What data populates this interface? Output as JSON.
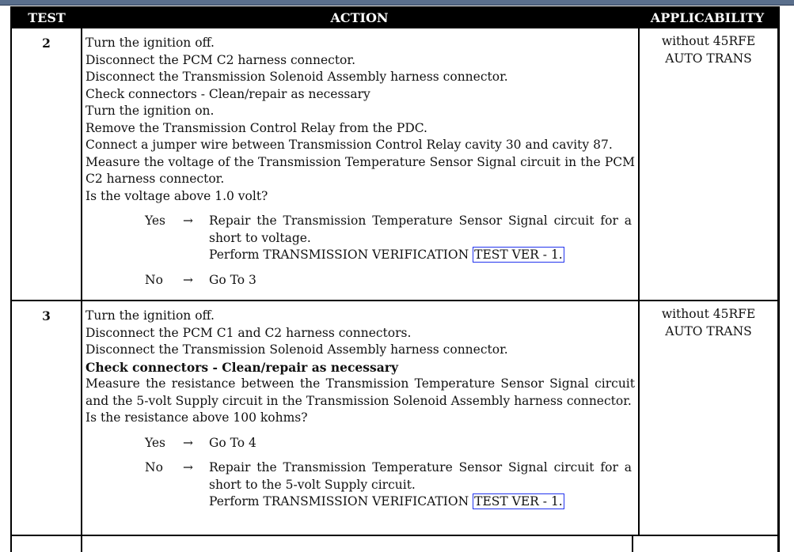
{
  "header": {
    "test": "TEST",
    "action": "ACTION",
    "applicability": "APPLICABILITY"
  },
  "rows": [
    {
      "test": "2",
      "applicability": [
        "without 45RFE",
        "AUTO TRANS"
      ],
      "steps": [
        "Turn the ignition off.",
        "Disconnect the PCM C2 harness connector.",
        "Disconnect the Transmission Solenoid Assembly harness connector.",
        "Check connectors - Clean/repair as necessary",
        "Turn the ignition on.",
        "Remove the Transmission Control Relay from the PDC.",
        "Connect a jumper wire between Transmission Control Relay cavity 30 and cavity 87.",
        "Measure the voltage of the Transmission Temperature Sensor Signal circuit in the PCM C2 harness connector.",
        "Is the voltage above 1.0 volt?"
      ],
      "yes": {
        "label": "Yes",
        "arrow": "→",
        "text": "Repair the Transmission Temperature Sensor Signal circuit for a short to voltage.",
        "perform": "Perform TRANSMISSION VERIFICATION",
        "link": "TEST VER - 1."
      },
      "no": {
        "label": "No",
        "arrow": "→",
        "text": "Go To  3"
      }
    },
    {
      "test": "3",
      "applicability": [
        "without 45RFE",
        "AUTO TRANS"
      ],
      "steps": [
        "Turn the ignition off.",
        "Disconnect the PCM C1 and C2 harness connectors.",
        "Disconnect the Transmission Solenoid Assembly harness connector.",
        "Check connectors - Clean/repair as necessary",
        "Measure the resistance between the Transmission Temperature Sensor Signal circuit and the 5-volt Supply circuit in the Transmission Solenoid Assembly harness connector.",
        "Is the resistance above 100 kohms?"
      ],
      "yes": {
        "label": "Yes",
        "arrow": "→",
        "text": "Go To  4"
      },
      "no": {
        "label": "No",
        "arrow": "→",
        "text": "Repair the Transmission Temperature Sensor Signal circuit for a short to the 5-volt Supply circuit.",
        "perform": "Perform TRANSMISSION VERIFICATION",
        "link": "TEST VER - 1."
      }
    }
  ]
}
